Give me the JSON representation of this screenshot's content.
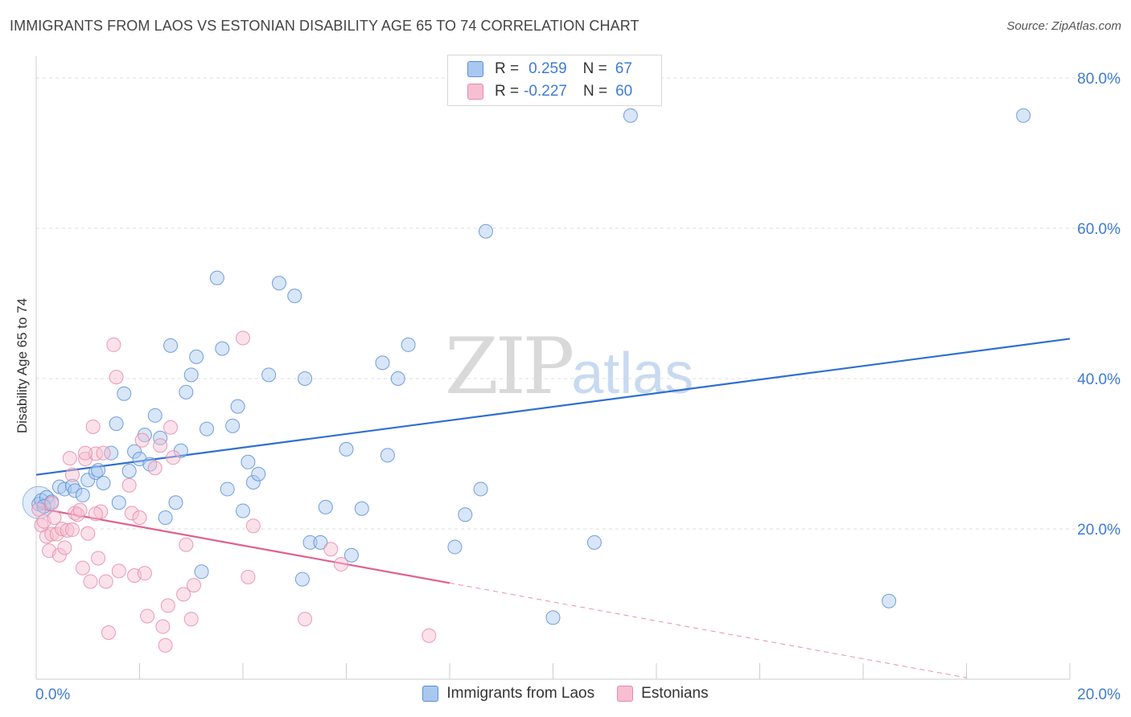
{
  "title": "IMMIGRANTS FROM LAOS VS ESTONIAN DISABILITY AGE 65 TO 74 CORRELATION CHART",
  "source": "Source: ZipAtlas.com",
  "watermark": {
    "zip": "ZIP",
    "atlas": "atlas"
  },
  "legend": {
    "rows": [
      {
        "r_label": "R =",
        "r_value": "0.259",
        "n_label": "N =",
        "n_value": "67"
      },
      {
        "r_label": "R =",
        "r_value": "-0.227",
        "n_label": "N =",
        "n_value": "60"
      }
    ]
  },
  "bottom_legend": [
    "Immigrants from Laos",
    "Estonians"
  ],
  "colors": {
    "blue_fill": "#a9c8f0",
    "blue_stroke": "#5b8fd6",
    "blue_line": "#2f6fd0",
    "pink_fill": "#f7bfd1",
    "pink_stroke": "#e68aa8",
    "pink_line": "#e0608e",
    "tick_text": "#3e7bd6",
    "grid": "#dddddd"
  },
  "chart_data": {
    "type": "scatter",
    "title": "IMMIGRANTS FROM LAOS VS ESTONIAN DISABILITY AGE 65 TO 74 CORRELATION CHART",
    "xlabel": "",
    "ylabel": "Disability Age 65 to 74",
    "xlim": [
      0,
      20
    ],
    "ylim": [
      0,
      83
    ],
    "x_tick_labels": [
      {
        "value": 0,
        "label": "0.0%"
      },
      {
        "value": 20,
        "label": "20.0%"
      }
    ],
    "y_tick_labels": [
      {
        "value": 20,
        "label": "20.0%"
      },
      {
        "value": 40,
        "label": "40.0%"
      },
      {
        "value": 60,
        "label": "60.0%"
      },
      {
        "value": 80,
        "label": "80.0%"
      }
    ],
    "legend_position": "top-center",
    "grid": true,
    "series": [
      {
        "name": "Immigrants from Laos",
        "r": 0.259,
        "n": 67,
        "trend": {
          "x": [
            0,
            20
          ],
          "y": [
            27.2,
            45.3
          ]
        },
        "points": [
          [
            0.05,
            23.3
          ],
          [
            0.1,
            23.8
          ],
          [
            0.2,
            24.2
          ],
          [
            0.3,
            23.6
          ],
          [
            0.45,
            25.6
          ],
          [
            0.55,
            25.3
          ],
          [
            0.7,
            25.7
          ],
          [
            0.75,
            25.1
          ],
          [
            0.9,
            24.5
          ],
          [
            1.0,
            26.5
          ],
          [
            1.15,
            27.5
          ],
          [
            1.3,
            26.1
          ],
          [
            1.45,
            30.1
          ],
          [
            1.55,
            34.0
          ],
          [
            1.6,
            23.5
          ],
          [
            1.7,
            38.0
          ],
          [
            1.8,
            27.7
          ],
          [
            1.9,
            30.3
          ],
          [
            2.0,
            29.3
          ],
          [
            2.1,
            32.5
          ],
          [
            2.2,
            28.6
          ],
          [
            2.3,
            35.1
          ],
          [
            2.4,
            32.1
          ],
          [
            2.5,
            21.5
          ],
          [
            2.6,
            44.4
          ],
          [
            2.7,
            23.5
          ],
          [
            2.8,
            30.4
          ],
          [
            2.9,
            38.2
          ],
          [
            3.0,
            40.5
          ],
          [
            3.1,
            42.9
          ],
          [
            3.2,
            14.3
          ],
          [
            3.3,
            33.3
          ],
          [
            3.5,
            53.4
          ],
          [
            3.6,
            44.0
          ],
          [
            3.7,
            25.3
          ],
          [
            3.8,
            33.7
          ],
          [
            3.9,
            36.3
          ],
          [
            4.0,
            22.4
          ],
          [
            4.1,
            28.9
          ],
          [
            4.2,
            26.2
          ],
          [
            4.3,
            27.3
          ],
          [
            4.5,
            40.5
          ],
          [
            4.7,
            52.7
          ],
          [
            5.0,
            51.0
          ],
          [
            5.15,
            13.3
          ],
          [
            5.2,
            40.0
          ],
          [
            5.3,
            18.2
          ],
          [
            5.5,
            18.2
          ],
          [
            5.6,
            22.9
          ],
          [
            6.0,
            30.6
          ],
          [
            6.1,
            16.5
          ],
          [
            6.3,
            22.7
          ],
          [
            6.7,
            42.1
          ],
          [
            6.8,
            29.8
          ],
          [
            7.0,
            40.0
          ],
          [
            7.2,
            44.5
          ],
          [
            8.1,
            17.6
          ],
          [
            8.3,
            21.9
          ],
          [
            8.6,
            25.3
          ],
          [
            8.7,
            59.6
          ],
          [
            10.0,
            8.2
          ],
          [
            10.8,
            18.2
          ],
          [
            11.5,
            75.0
          ],
          [
            16.5,
            10.4
          ],
          [
            19.1,
            75.0
          ],
          [
            0.15,
            23.0
          ],
          [
            1.2,
            27.8
          ]
        ]
      },
      {
        "name": "Estonians",
        "r": -0.227,
        "n": 60,
        "trend": {
          "x": [
            0,
            8.0
          ],
          "y": [
            22.8,
            12.8
          ]
        },
        "trend_dashed": {
          "x": [
            8.0,
            18.0
          ],
          "y": [
            12.8,
            0.2
          ]
        },
        "points": [
          [
            0.05,
            22.6
          ],
          [
            0.1,
            20.5
          ],
          [
            0.15,
            21.0
          ],
          [
            0.2,
            19.0
          ],
          [
            0.25,
            17.1
          ],
          [
            0.3,
            19.3
          ],
          [
            0.35,
            21.5
          ],
          [
            0.4,
            19.3
          ],
          [
            0.45,
            16.5
          ],
          [
            0.5,
            20.0
          ],
          [
            0.55,
            17.5
          ],
          [
            0.6,
            19.8
          ],
          [
            0.65,
            29.4
          ],
          [
            0.7,
            27.2
          ],
          [
            0.75,
            22.1
          ],
          [
            0.8,
            21.9
          ],
          [
            0.85,
            22.5
          ],
          [
            0.9,
            14.8
          ],
          [
            0.95,
            29.3
          ],
          [
            1.0,
            19.4
          ],
          [
            1.05,
            13.0
          ],
          [
            1.1,
            33.6
          ],
          [
            1.15,
            30.0
          ],
          [
            1.2,
            16.1
          ],
          [
            1.25,
            22.3
          ],
          [
            1.3,
            30.1
          ],
          [
            1.35,
            13.0
          ],
          [
            1.4,
            6.2
          ],
          [
            1.5,
            44.5
          ],
          [
            1.55,
            40.2
          ],
          [
            1.6,
            14.4
          ],
          [
            1.8,
            25.8
          ],
          [
            1.85,
            22.1
          ],
          [
            1.9,
            13.8
          ],
          [
            2.0,
            21.5
          ],
          [
            2.05,
            31.8
          ],
          [
            2.1,
            14.1
          ],
          [
            2.15,
            8.4
          ],
          [
            2.3,
            28.1
          ],
          [
            2.4,
            31.1
          ],
          [
            2.45,
            7.0
          ],
          [
            2.5,
            4.5
          ],
          [
            2.55,
            9.8
          ],
          [
            2.6,
            33.5
          ],
          [
            2.65,
            29.5
          ],
          [
            2.85,
            11.3
          ],
          [
            2.9,
            17.9
          ],
          [
            3.05,
            12.5
          ],
          [
            3.0,
            8.0
          ],
          [
            4.0,
            45.4
          ],
          [
            4.1,
            13.6
          ],
          [
            4.2,
            20.4
          ],
          [
            5.2,
            8.0
          ],
          [
            5.7,
            17.3
          ],
          [
            5.9,
            15.3
          ],
          [
            7.6,
            5.8
          ],
          [
            0.3,
            23.4
          ],
          [
            0.7,
            19.9
          ],
          [
            1.15,
            22.0
          ],
          [
            0.95,
            30.1
          ]
        ]
      }
    ]
  }
}
